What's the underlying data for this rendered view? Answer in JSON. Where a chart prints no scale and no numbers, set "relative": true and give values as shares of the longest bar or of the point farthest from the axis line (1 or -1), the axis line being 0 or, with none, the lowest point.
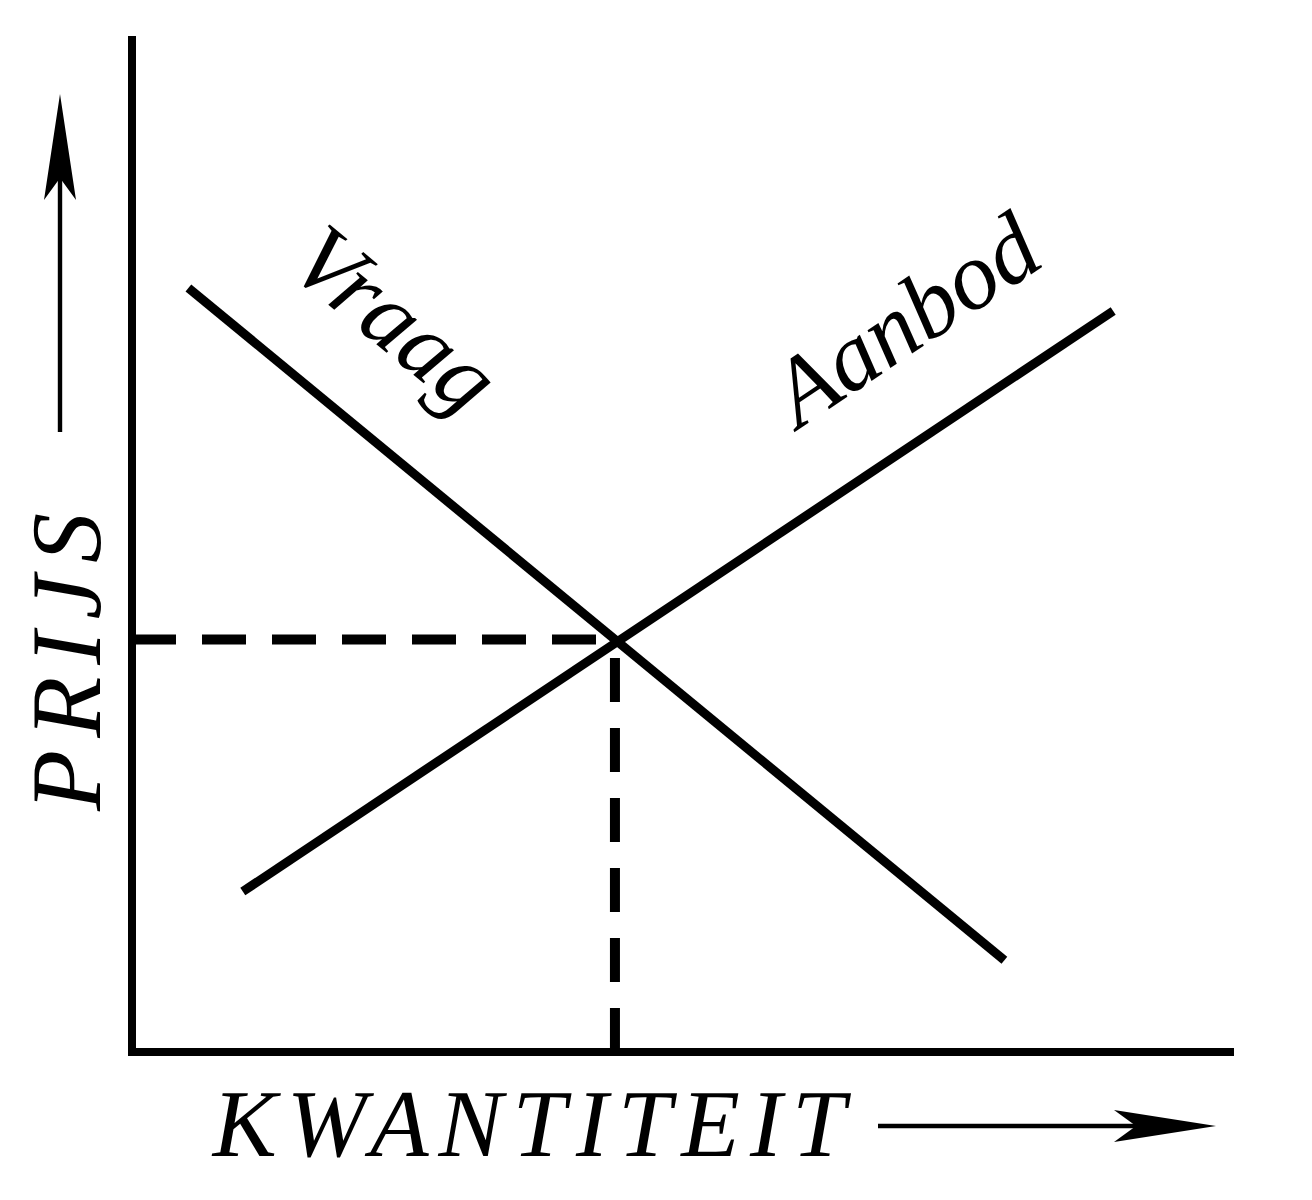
{
  "chart_data": {
    "type": "line",
    "xlabel": "KWANTITEIT",
    "ylabel": "PRIJS",
    "relative": true,
    "categories": [
      null,
      null,
      null,
      null,
      null,
      null,
      null,
      null,
      null,
      null,
      null,
      null,
      null,
      null,
      null,
      null,
      null,
      null,
      null,
      null,
      null
    ],
    "series": [
      {
        "name": "Vraag",
        "color": "#000000",
        "values": [
          null,
          1,
          null,
          null,
          null,
          null,
          null,
          null,
          null,
          null,
          null,
          null,
          null,
          null,
          null,
          null,
          0.12,
          null,
          null,
          null,
          null
        ]
      },
      {
        "name": "Aanbod",
        "color": "#000000",
        "values": [
          null,
          null,
          0.21,
          null,
          null,
          null,
          null,
          null,
          null,
          null,
          null,
          null,
          null,
          null,
          null,
          null,
          null,
          null,
          0.97,
          null,
          null
        ]
      }
    ],
    "ref_lines": [
      {
        "axis": "y",
        "value": 0.54,
        "color": "#000000",
        "line_style": "dashed"
      }
    ]
  }
}
